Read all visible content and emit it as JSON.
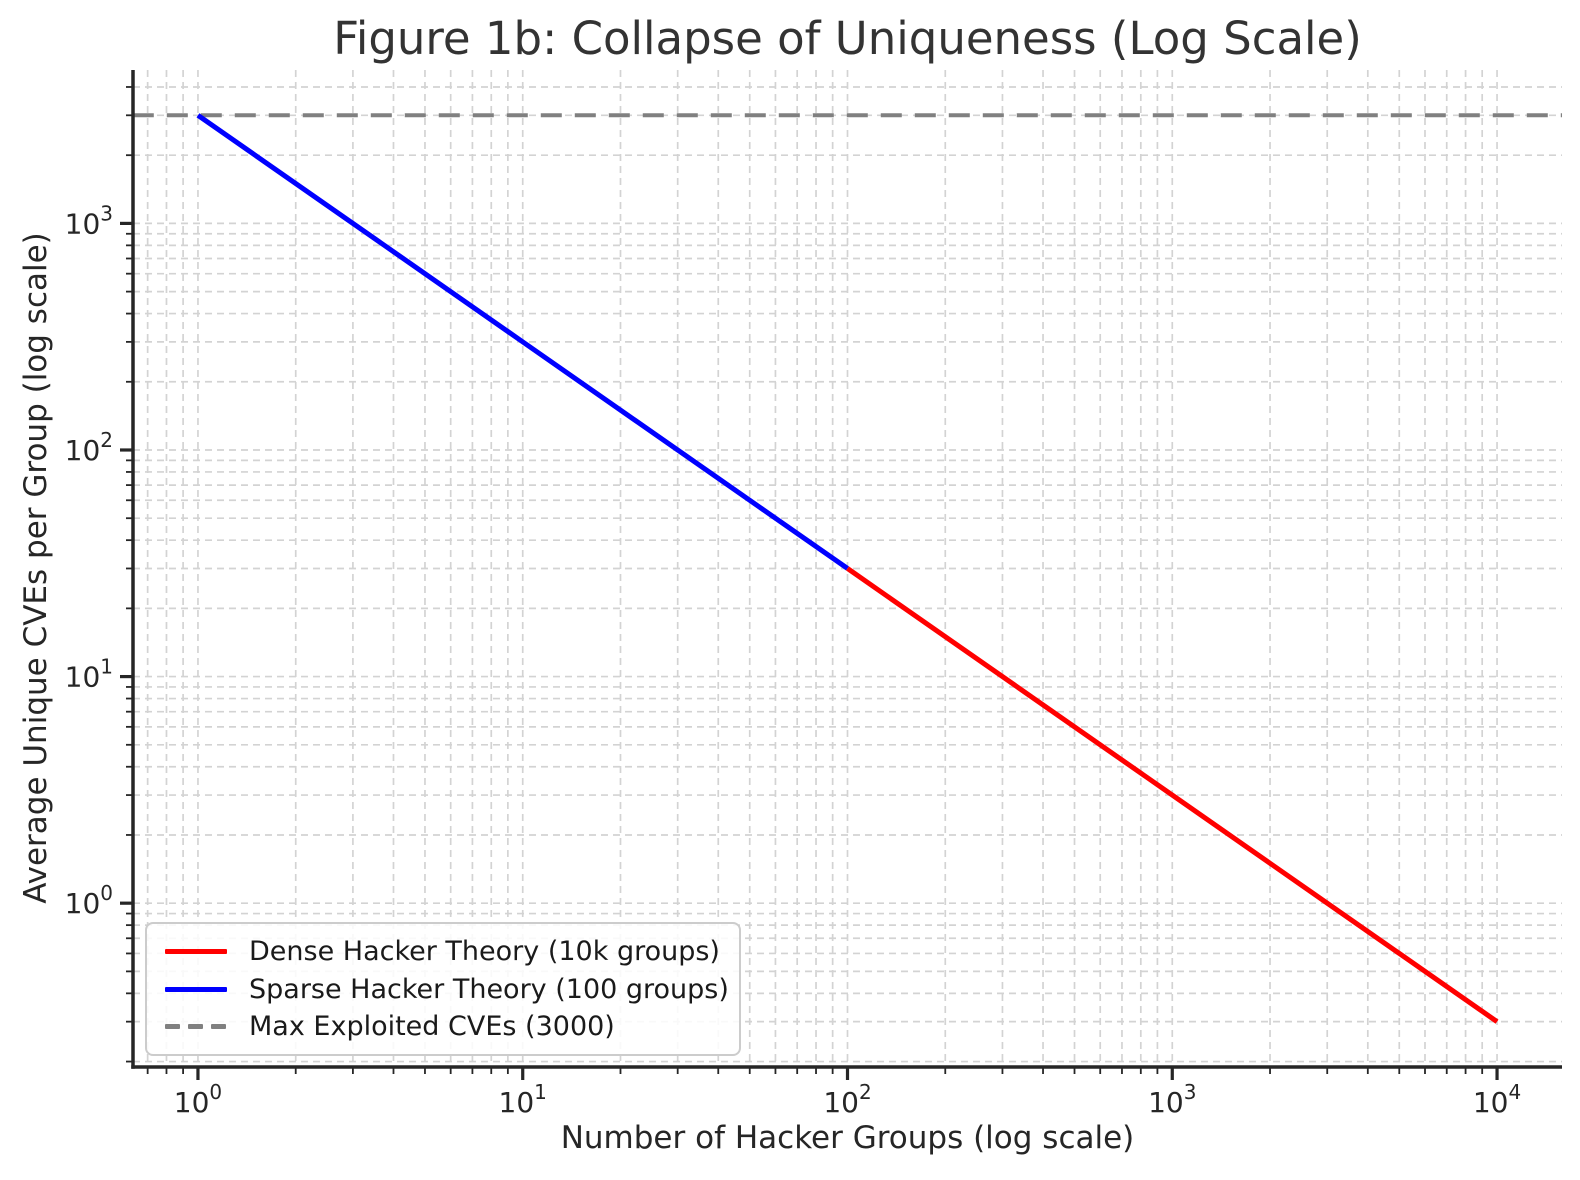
{
  "figure": {
    "title": "Figure 1b: Collapse of Uniqueness (Log Scale)",
    "xlabel": "Number of Hacker Groups (log scale)",
    "ylabel": "Average Unique CVEs per Group (log scale)"
  },
  "legend": {
    "items": [
      {
        "label": "Dense Hacker Theory (10k groups)",
        "color": "#ff0000",
        "linestyle": "solid"
      },
      {
        "label": "Sparse Hacker Theory (100 groups)",
        "color": "#0000ff",
        "linestyle": "solid"
      },
      {
        "label": "Max Exploited CVEs (3000)",
        "color": "#808080",
        "linestyle": "dashed"
      }
    ]
  },
  "colors": {
    "background": "#ffffff",
    "grid": "#d3d3d3",
    "spine": "#262626",
    "tick": "#262626",
    "tick_label": "#262626",
    "title": "#333333",
    "axis_label": "#262626"
  },
  "chart_data": {
    "type": "line",
    "title": "Figure 1b: Collapse of Uniqueness (Log Scale)",
    "xlabel": "Number of Hacker Groups (log scale)",
    "ylabel": "Average Unique CVEs per Group (log scale)",
    "x_scale": "log",
    "y_scale": "log",
    "xlim": [
      0.63,
      15850
    ],
    "ylim": [
      0.19,
      4750
    ],
    "xlim_log10": [
      -0.2,
      4.2
    ],
    "ylim_log10": [
      -0.723,
      3.677
    ],
    "x_tick_exponents": [
      0,
      1,
      2,
      3,
      4
    ],
    "y_tick_exponents": [
      0,
      1,
      2,
      3
    ],
    "grid": {
      "which": "both",
      "linestyle": "dashed",
      "visible": true
    },
    "legend_position": "lower left",
    "series": [
      {
        "name": "Max Exploited CVEs (3000)",
        "color": "#808080",
        "linestyle": "dashed",
        "linewidth": 4,
        "kind": "hline",
        "value": 3000,
        "points": [
          [
            0.63,
            3000
          ],
          [
            15850,
            3000
          ]
        ]
      },
      {
        "name": "Sparse Hacker Theory (100 groups)",
        "color": "#0000ff",
        "linestyle": "solid",
        "linewidth": 5,
        "relation": "y = 3000 / x",
        "points": [
          [
            1,
            3000
          ],
          [
            10,
            300
          ],
          [
            100,
            30
          ]
        ]
      },
      {
        "name": "Dense Hacker Theory (10k groups)",
        "color": "#ff0000",
        "linestyle": "solid",
        "linewidth": 5,
        "relation": "y = 3000 / x",
        "points": [
          [
            100,
            30
          ],
          [
            1000,
            3
          ],
          [
            10000,
            0.3
          ]
        ]
      }
    ]
  }
}
